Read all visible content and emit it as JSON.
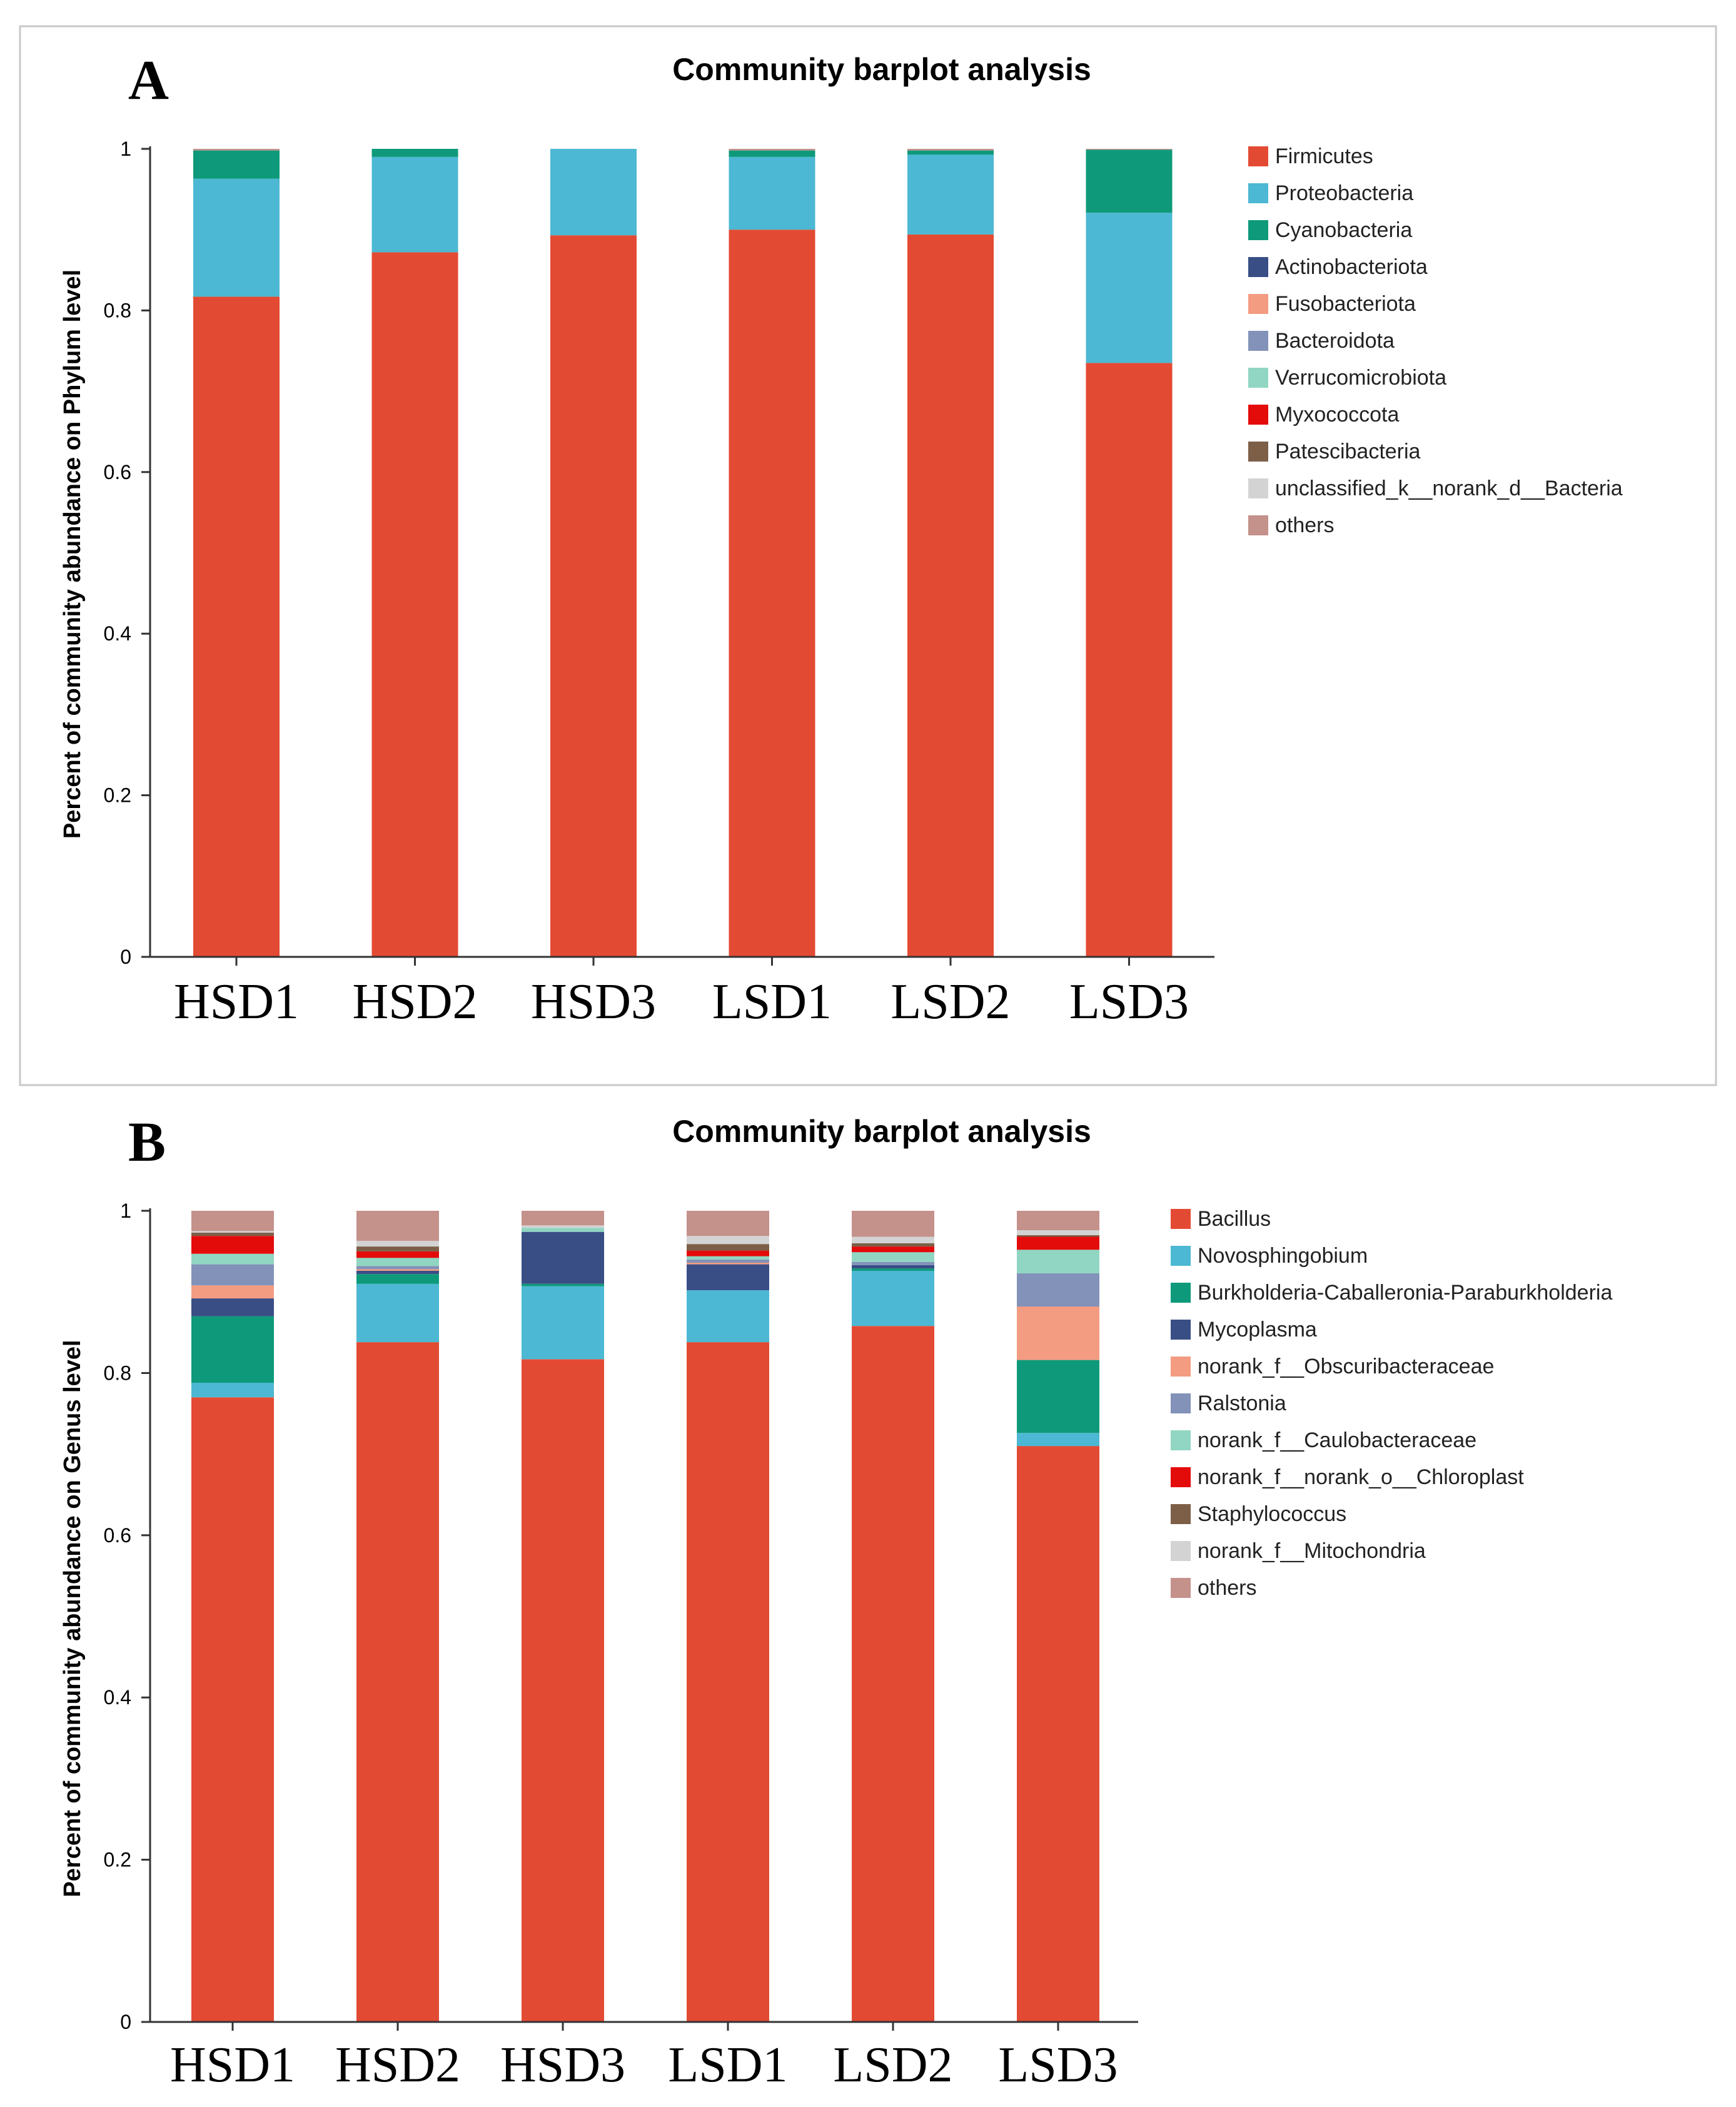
{
  "chart_data": [
    {
      "panel": "A",
      "type": "bar",
      "stacked": true,
      "title": "Community barplot analysis",
      "xlabel": "",
      "ylabel": "Percent of community abundance on Phylum level",
      "ylim": [
        0,
        1
      ],
      "yticks": [
        "0",
        "0.2",
        "0.4",
        "0.6",
        "0.8",
        "1"
      ],
      "categories": [
        "HSD1",
        "HSD2",
        "HSD3",
        "LSD1",
        "LSD2",
        "LSD3"
      ],
      "legend_position": "right",
      "series": [
        {
          "name": "Firmicutes",
          "color": "#e34a33",
          "values": [
            0.817,
            0.872,
            0.893,
            0.9,
            0.894,
            0.735
          ]
        },
        {
          "name": "Proteobacteria",
          "color": "#4cb8d3",
          "values": [
            0.146,
            0.118,
            0.107,
            0.09,
            0.099,
            0.186
          ]
        },
        {
          "name": "Cyanobacteria",
          "color": "#0e9a7a",
          "values": [
            0.035,
            0.01,
            0.0,
            0.008,
            0.005,
            0.078
          ]
        },
        {
          "name": "Actinobacteriota",
          "color": "#3a4e86",
          "values": [
            0,
            0,
            0,
            0,
            0,
            0
          ]
        },
        {
          "name": "Fusobacteriota",
          "color": "#f39c82",
          "values": [
            0,
            0,
            0,
            0,
            0,
            0
          ]
        },
        {
          "name": "Bacteroidota",
          "color": "#8292b8",
          "values": [
            0,
            0,
            0,
            0,
            0,
            0
          ]
        },
        {
          "name": "Verrucomicrobiota",
          "color": "#90d6c2",
          "values": [
            0,
            0,
            0,
            0,
            0,
            0
          ]
        },
        {
          "name": "Myxococcota",
          "color": "#e40b0b",
          "values": [
            0,
            0,
            0,
            0,
            0,
            0
          ]
        },
        {
          "name": "Patescibacteria",
          "color": "#7d5f48",
          "values": [
            0,
            0,
            0,
            0,
            0,
            0
          ]
        },
        {
          "name": "unclassified_k__norank_d__Bacteria",
          "color": "#d3d3d3",
          "values": [
            0,
            0,
            0,
            0,
            0,
            0
          ]
        },
        {
          "name": "others",
          "color": "#c4918b",
          "values": [
            0.002,
            0.0,
            0.0,
            0.002,
            0.002,
            0.001
          ]
        }
      ]
    },
    {
      "panel": "B",
      "type": "bar",
      "stacked": true,
      "title": "Community barplot analysis",
      "xlabel": "",
      "ylabel": "Percent of community abundance on Genus level",
      "ylim": [
        0,
        1
      ],
      "yticks": [
        "0",
        "0.2",
        "0.4",
        "0.6",
        "0.8",
        "1"
      ],
      "categories": [
        "HSD1",
        "HSD2",
        "HSD3",
        "LSD1",
        "LSD2",
        "LSD3"
      ],
      "legend_position": "right",
      "series": [
        {
          "name": "Bacillus",
          "color": "#e34a33",
          "values": [
            0.77,
            0.838,
            0.817,
            0.838,
            0.858,
            0.71
          ]
        },
        {
          "name": "Novosphingobium",
          "color": "#4cb8d3",
          "values": [
            0.018,
            0.072,
            0.09,
            0.064,
            0.068,
            0.016
          ]
        },
        {
          "name": "Burkholderia-Caballeronia-Paraburkholderia",
          "color": "#0e9a7a",
          "values": [
            0.082,
            0.012,
            0.003,
            0.0,
            0.003,
            0.09
          ]
        },
        {
          "name": "Mycoplasma",
          "color": "#3a4e86",
          "values": [
            0.022,
            0.004,
            0.064,
            0.032,
            0.004,
            0.0
          ]
        },
        {
          "name": "norank_f__Obscuribacteraceae",
          "color": "#f39c82",
          "values": [
            0.016,
            0.002,
            0.0,
            0.002,
            0.0,
            0.066
          ]
        },
        {
          "name": "Ralstonia",
          "color": "#8292b8",
          "values": [
            0.026,
            0.004,
            0.0,
            0.004,
            0.004,
            0.041
          ]
        },
        {
          "name": "norank_f__Caulobacteraceae",
          "color": "#90d6c2",
          "values": [
            0.013,
            0.01,
            0.005,
            0.004,
            0.012,
            0.029
          ]
        },
        {
          "name": "norank_f__norank_o__Chloroplast",
          "color": "#e40b0b",
          "values": [
            0.022,
            0.008,
            0.0,
            0.007,
            0.007,
            0.016
          ]
        },
        {
          "name": "Staphylococcus",
          "color": "#7d5f48",
          "values": [
            0.004,
            0.006,
            0.0,
            0.008,
            0.004,
            0.002
          ]
        },
        {
          "name": "norank_f__Mitochondria",
          "color": "#d3d3d3",
          "values": [
            0.002,
            0.007,
            0.003,
            0.01,
            0.008,
            0.006
          ]
        },
        {
          "name": "others",
          "color": "#c4918b",
          "values": [
            0.025,
            0.037,
            0.018,
            0.031,
            0.032,
            0.024
          ]
        }
      ]
    }
  ]
}
